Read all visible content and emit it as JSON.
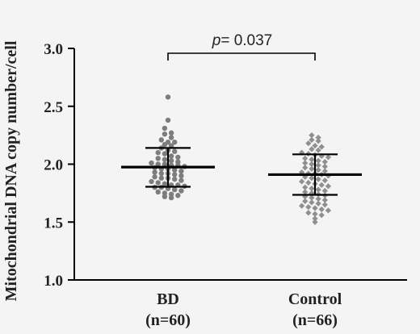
{
  "chart_data": {
    "type": "scatter",
    "ylabel": "Mitochondrial DNA copy number/cell",
    "ylim": [
      1.0,
      3.0
    ],
    "yticks": [
      "1.0",
      "1.5",
      "2.0",
      "2.5",
      "3.0"
    ],
    "grid": false,
    "annotation": {
      "p_symbol": "p",
      "text": "= 0.037"
    },
    "groups": [
      {
        "label": "BD",
        "n_label": "(n=60)",
        "marker": "circle",
        "color": "#7d7d7d",
        "mean": 1.975,
        "upper": 2.14,
        "lower": 1.805,
        "values": [
          2.58,
          2.38,
          2.31,
          2.27,
          2.26,
          2.23,
          2.21,
          2.19,
          2.19,
          2.17,
          2.16,
          2.14,
          2.12,
          2.11,
          2.1,
          2.09,
          2.07,
          2.06,
          2.05,
          2.04,
          2.03,
          2.02,
          2.01,
          2.0,
          2.0,
          1.99,
          1.99,
          1.98,
          1.97,
          1.96,
          1.96,
          1.95,
          1.94,
          1.93,
          1.92,
          1.92,
          1.91,
          1.9,
          1.89,
          1.88,
          1.88,
          1.87,
          1.86,
          1.85,
          1.84,
          1.83,
          1.82,
          1.82,
          1.81,
          1.8,
          1.8,
          1.79,
          1.78,
          1.77,
          1.76,
          1.75,
          1.74,
          1.73,
          1.72,
          1.71
        ]
      },
      {
        "label": "Control",
        "n_label": "(n=66)",
        "marker": "diamond",
        "color": "#8f8f8f",
        "mean": 1.91,
        "upper": 2.085,
        "lower": 1.735,
        "values": [
          2.25,
          2.23,
          2.21,
          2.2,
          2.18,
          2.16,
          2.15,
          2.13,
          2.12,
          2.1,
          2.09,
          2.08,
          2.07,
          2.06,
          2.05,
          2.04,
          2.03,
          2.02,
          2.01,
          2.0,
          1.99,
          1.98,
          1.97,
          1.96,
          1.95,
          1.94,
          1.93,
          1.92,
          1.92,
          1.91,
          1.9,
          1.89,
          1.88,
          1.87,
          1.86,
          1.85,
          1.84,
          1.83,
          1.82,
          1.81,
          1.8,
          1.79,
          1.78,
          1.77,
          1.76,
          1.75,
          1.74,
          1.73,
          1.72,
          1.71,
          1.7,
          1.69,
          1.68,
          1.67,
          1.66,
          1.65,
          1.64,
          1.63,
          1.62,
          1.61,
          1.6,
          1.58,
          1.57,
          1.56,
          1.53,
          1.5
        ]
      }
    ]
  }
}
